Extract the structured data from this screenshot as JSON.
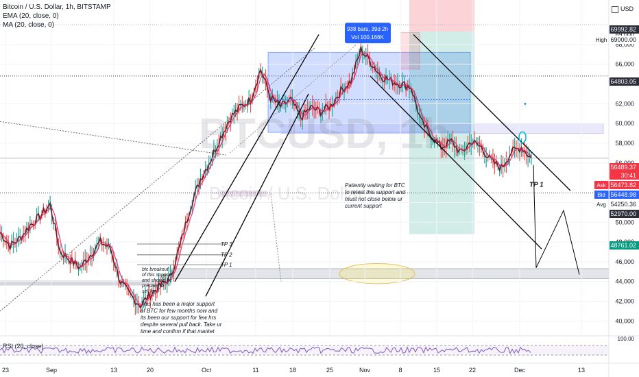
{
  "header": {
    "symbol_line": "Bitcoin / U.S. Dollar, 1h, BITSTAMP",
    "indicators": [
      "EMA (20, close, 0)",
      "MA (20, close, 0)"
    ],
    "rsi_label": "RSI (20, close)",
    "currency": "USD"
  },
  "watermark": {
    "ticker": "BTCUSD, 1h",
    "name": "Bitcoin / U.S. Dollar"
  },
  "chart_data": {
    "type": "line",
    "title": "Bitcoin / U.S. Dollar, 1h, BITSTAMP",
    "xlabel": "",
    "ylabel": "",
    "x_ticks": [
      "23",
      "Sep",
      "13",
      "20",
      "Oct",
      "11",
      "18",
      "25",
      "Nov",
      "8",
      "15",
      "22",
      "Dec",
      "13"
    ],
    "y_ticks": [
      40000,
      42000,
      44000,
      46000,
      48000,
      50000,
      52000,
      56000,
      58000,
      60000,
      62000,
      66000,
      68000,
      69000
    ],
    "ylim": [
      38500,
      72500
    ],
    "series": [
      {
        "name": "BTCUSD",
        "values": [
          49000,
          47600,
          48400,
          49700,
          50600,
          51800,
          47000,
          46200,
          45400,
          46700,
          48000,
          47400,
          44000,
          42600,
          41600,
          42700,
          43600,
          44400,
          47800,
          51600,
          54400,
          56300,
          58600,
          60600,
          61700,
          62400,
          65500,
          62600,
          61700,
          62400,
          60600,
          61600,
          61200,
          61800,
          63300,
          64300,
          67500,
          66200,
          64800,
          64300,
          64000,
          63700,
          60200,
          58800,
          57600,
          58200,
          57000,
          58200,
          57600,
          56200,
          55500,
          57100,
          57600,
          56500
        ]
      }
    ],
    "rsi_ticks": [
      100
    ],
    "price_labels": [
      {
        "text": "69992.82",
        "kind": "level"
      },
      {
        "text": "69000.00",
        "kind": "high"
      },
      {
        "text": "64803.05",
        "kind": "level"
      },
      {
        "text": "56489.37",
        "kind": "last"
      },
      {
        "text": "30:41",
        "kind": "countdown"
      },
      {
        "text": "56473.82",
        "kind": "ask"
      },
      {
        "text": "56448.98",
        "kind": "bid"
      },
      {
        "text": "54250.36",
        "kind": "avg"
      },
      {
        "text": "52970.00",
        "kind": "level"
      },
      {
        "text": "48761.02",
        "kind": "profit"
      }
    ],
    "tags": {
      "high": "High",
      "ask": "Ask",
      "bid": "Bid",
      "avg": "Avg"
    },
    "annotations": {
      "measure_bars": "938 bars, 39d 2h",
      "measure_vol": "Vol 100.166K",
      "tp1": "TP 1",
      "tp_small": [
        "TP 3",
        "TP 2",
        "TP 1"
      ],
      "note_support": [
        "Patiently waiting for BTC",
        "to retest this support and",
        "must not close below ur",
        "current support"
      ],
      "note_breakout": [
        "btc breakout",
        "of this support",
        "and should be",
        "prepare to",
        "sell lor"
      ],
      "note_major": [
        "This has been a major support",
        "of BTC for few months now and",
        "its been our support for few hrs",
        "despite several pull back. Take ur",
        "time and confirm if that market"
      ]
    }
  }
}
